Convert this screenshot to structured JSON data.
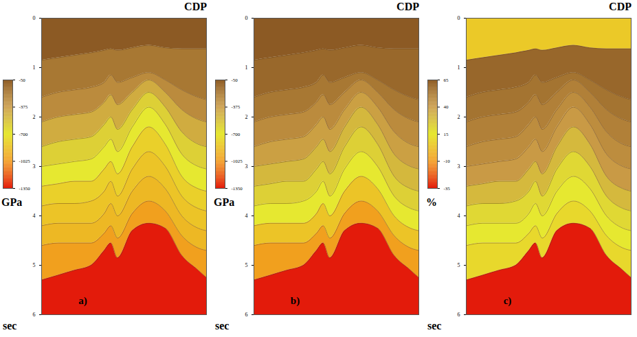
{
  "chart_data": [
    {
      "type": "section",
      "annotation": "a)",
      "x_label": "CDP",
      "y_label": "sec",
      "xlim": [
        0,
        100
      ],
      "ylim": [
        0,
        6
      ],
      "yticks": [
        0,
        1,
        2,
        3,
        4,
        5,
        6
      ],
      "tick_labels": "y",
      "x": [
        0,
        10,
        20,
        30,
        38,
        42,
        46,
        55,
        65,
        75,
        85,
        95,
        100
      ],
      "horizons": [
        [
          0.85,
          0.8,
          0.75,
          0.7,
          0.65,
          0.62,
          0.65,
          0.6,
          0.55,
          0.6,
          0.62,
          0.62,
          0.62
        ],
        [
          1.6,
          1.5,
          1.45,
          1.4,
          1.3,
          1.15,
          1.3,
          1.2,
          1.1,
          1.25,
          1.45,
          1.6,
          1.65
        ],
        [
          2.1,
          2.0,
          1.95,
          1.9,
          1.7,
          1.55,
          1.75,
          1.5,
          1.25,
          1.5,
          1.85,
          2.05,
          2.1
        ],
        [
          2.6,
          2.5,
          2.45,
          2.4,
          2.15,
          2.0,
          2.25,
          1.85,
          1.5,
          1.8,
          2.3,
          2.55,
          2.6
        ],
        [
          3.0,
          2.95,
          2.9,
          2.85,
          2.6,
          2.45,
          2.7,
          2.2,
          1.8,
          2.15,
          2.75,
          3.0,
          3.05
        ],
        [
          3.4,
          3.35,
          3.3,
          3.3,
          3.05,
          2.9,
          3.15,
          2.6,
          2.2,
          2.55,
          3.2,
          3.45,
          3.5
        ],
        [
          3.8,
          3.75,
          3.75,
          3.7,
          3.5,
          3.3,
          3.6,
          3.05,
          2.7,
          3.0,
          3.6,
          3.85,
          3.9
        ],
        [
          4.2,
          4.15,
          4.15,
          4.15,
          3.95,
          3.75,
          4.0,
          3.5,
          3.2,
          3.45,
          4.0,
          4.25,
          4.3
        ],
        [
          4.6,
          4.55,
          4.55,
          4.55,
          4.35,
          4.2,
          4.45,
          3.95,
          3.7,
          3.9,
          4.4,
          4.65,
          4.7
        ],
        [
          5.3,
          5.2,
          5.1,
          5.0,
          4.7,
          4.55,
          4.85,
          4.3,
          4.15,
          4.25,
          4.8,
          5.1,
          5.25
        ]
      ],
      "layer_values": [
        -50,
        -200,
        -300,
        -450,
        -600,
        -700,
        -800,
        -850,
        -900,
        -1000,
        -1350
      ],
      "colorbar": {
        "label": "GPa",
        "clim": [
          -1350,
          -50
        ],
        "ticks": [
          -50,
          -375,
          -700,
          -1025,
          -1350
        ]
      }
    },
    {
      "type": "section",
      "annotation": "b)",
      "x_label": "CDP",
      "y_label": "sec",
      "xlim": [
        0,
        100
      ],
      "ylim": [
        0,
        6
      ],
      "yticks": [
        0,
        1,
        2,
        3,
        4,
        5,
        6
      ],
      "tick_labels": "y",
      "x": [
        0,
        10,
        20,
        30,
        38,
        42,
        46,
        55,
        65,
        75,
        85,
        95,
        100
      ],
      "horizons": [
        [
          0.85,
          0.8,
          0.75,
          0.7,
          0.65,
          0.62,
          0.65,
          0.6,
          0.55,
          0.6,
          0.62,
          0.62,
          0.62
        ],
        [
          1.6,
          1.5,
          1.45,
          1.4,
          1.3,
          1.15,
          1.3,
          1.2,
          1.1,
          1.25,
          1.45,
          1.6,
          1.65
        ],
        [
          2.1,
          2.0,
          1.95,
          1.9,
          1.7,
          1.55,
          1.75,
          1.5,
          1.25,
          1.5,
          1.85,
          2.05,
          2.1
        ],
        [
          2.6,
          2.5,
          2.45,
          2.4,
          2.15,
          2.0,
          2.25,
          1.85,
          1.5,
          1.8,
          2.3,
          2.55,
          2.6
        ],
        [
          3.0,
          2.95,
          2.9,
          2.85,
          2.6,
          2.45,
          2.7,
          2.2,
          1.8,
          2.15,
          2.75,
          3.0,
          3.05
        ],
        [
          3.4,
          3.35,
          3.3,
          3.3,
          3.05,
          2.9,
          3.15,
          2.6,
          2.2,
          2.55,
          3.2,
          3.45,
          3.5
        ],
        [
          3.8,
          3.75,
          3.75,
          3.7,
          3.5,
          3.3,
          3.6,
          3.05,
          2.7,
          3.0,
          3.6,
          3.85,
          3.9
        ],
        [
          4.2,
          4.15,
          4.15,
          4.15,
          3.95,
          3.75,
          4.0,
          3.5,
          3.2,
          3.45,
          4.0,
          4.25,
          4.3
        ],
        [
          4.6,
          4.55,
          4.55,
          4.55,
          4.35,
          4.2,
          4.45,
          3.95,
          3.7,
          3.9,
          4.4,
          4.65,
          4.7
        ],
        [
          5.3,
          5.2,
          5.1,
          5.0,
          4.7,
          4.55,
          4.85,
          4.3,
          4.15,
          4.25,
          4.8,
          5.1,
          5.25
        ]
      ],
      "layer_values": [
        -50,
        -120,
        -200,
        -300,
        -400,
        -500,
        -600,
        -700,
        -850,
        -1000,
        -1350
      ],
      "colorbar": {
        "label": "GPa",
        "clim": [
          -1350,
          -50
        ],
        "ticks": [
          -50,
          -375,
          -700,
          -1025,
          -1350
        ]
      }
    },
    {
      "type": "section",
      "annotation": "c)",
      "x_label": "CDP",
      "y_label": "sec",
      "xlim": [
        0,
        100
      ],
      "ylim": [
        0,
        6
      ],
      "yticks": [
        0,
        1,
        2,
        3,
        4,
        5,
        6
      ],
      "tick_labels": "y",
      "x": [
        0,
        10,
        20,
        30,
        38,
        42,
        46,
        55,
        65,
        75,
        85,
        95,
        100
      ],
      "horizons": [
        [
          0.85,
          0.8,
          0.75,
          0.7,
          0.65,
          0.62,
          0.65,
          0.6,
          0.55,
          0.6,
          0.62,
          0.62,
          0.62
        ],
        [
          1.6,
          1.5,
          1.45,
          1.4,
          1.3,
          1.15,
          1.3,
          1.2,
          1.1,
          1.25,
          1.45,
          1.6,
          1.65
        ],
        [
          2.1,
          2.0,
          1.95,
          1.9,
          1.7,
          1.55,
          1.75,
          1.5,
          1.25,
          1.5,
          1.85,
          2.05,
          2.1
        ],
        [
          2.6,
          2.5,
          2.45,
          2.4,
          2.15,
          2.0,
          2.25,
          1.85,
          1.5,
          1.8,
          2.3,
          2.55,
          2.6
        ],
        [
          3.0,
          2.95,
          2.9,
          2.85,
          2.6,
          2.45,
          2.7,
          2.2,
          1.8,
          2.15,
          2.75,
          3.0,
          3.05
        ],
        [
          3.4,
          3.35,
          3.3,
          3.3,
          3.05,
          2.9,
          3.15,
          2.6,
          2.2,
          2.55,
          3.2,
          3.45,
          3.5
        ],
        [
          3.8,
          3.75,
          3.75,
          3.7,
          3.5,
          3.3,
          3.6,
          3.05,
          2.7,
          3.0,
          3.6,
          3.85,
          3.9
        ],
        [
          4.2,
          4.15,
          4.15,
          4.15,
          3.95,
          3.75,
          4.0,
          3.5,
          3.2,
          3.45,
          4.0,
          4.25,
          4.3
        ],
        [
          4.6,
          4.55,
          4.55,
          4.55,
          4.35,
          4.2,
          4.45,
          3.95,
          3.7,
          3.9,
          4.4,
          4.65,
          4.7
        ],
        [
          5.3,
          5.2,
          5.1,
          5.0,
          4.7,
          4.55,
          4.85,
          4.3,
          4.15,
          4.25,
          4.8,
          5.1,
          5.25
        ]
      ],
      "layer_values": [
        5,
        60,
        55,
        50,
        45,
        40,
        30,
        20,
        15,
        10,
        -35
      ],
      "colorbar": {
        "label": "%",
        "clim": [
          -35,
          65
        ],
        "ticks": [
          65,
          40,
          15,
          -10,
          -35
        ]
      }
    }
  ]
}
